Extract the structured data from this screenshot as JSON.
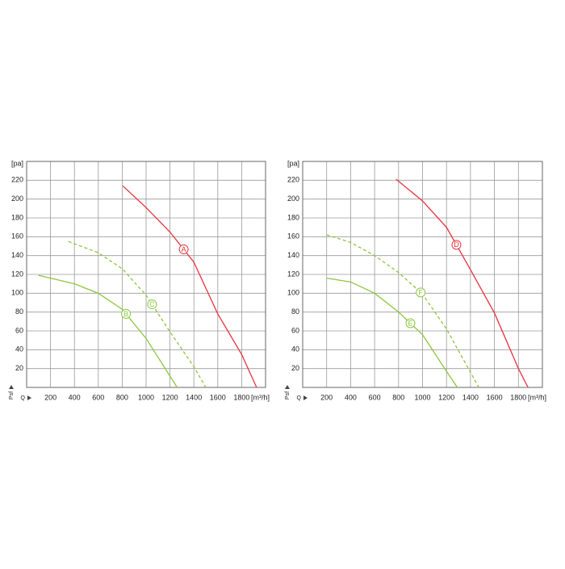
{
  "chart_data": [
    {
      "type": "line",
      "x_label": "[m³/h]",
      "y_label": "[pa]",
      "x_symbol": "Q",
      "y_symbol": "Psf",
      "xlim": [
        0,
        2000
      ],
      "xticks": [
        200,
        400,
        600,
        800,
        1000,
        1200,
        1400,
        1600,
        1800
      ],
      "ylim": [
        0,
        240
      ],
      "yticks": [
        20,
        40,
        60,
        80,
        100,
        120,
        140,
        160,
        180,
        200,
        220
      ],
      "grid": true,
      "series": [
        {
          "name": "A",
          "color": "#e8323c",
          "style": "solid",
          "x": [
            805,
            1000,
            1200,
            1400,
            1600,
            1800,
            1925
          ],
          "values": [
            214,
            191,
            165,
            133,
            78,
            35,
            0
          ]
        },
        {
          "name": "B",
          "color": "#8cc63f",
          "style": "solid",
          "x": [
            100,
            400,
            600,
            800,
            1000,
            1200,
            1260
          ],
          "values": [
            119,
            110,
            100,
            83,
            52,
            12,
            0
          ]
        },
        {
          "name": "C",
          "color": "#8cc63f",
          "style": "dashed",
          "x": [
            350,
            600,
            800,
            1000,
            1200,
            1400,
            1500
          ],
          "values": [
            155,
            143,
            126,
            98,
            59,
            22,
            0
          ]
        }
      ]
    },
    {
      "type": "line",
      "x_label": "[m³/h]",
      "y_label": "[pa]",
      "x_symbol": "Q",
      "y_symbol": "Psf",
      "xlim": [
        0,
        2000
      ],
      "xticks": [
        200,
        400,
        600,
        800,
        1000,
        1200,
        1400,
        1600,
        1800
      ],
      "ylim": [
        0,
        240
      ],
      "yticks": [
        20,
        40,
        60,
        80,
        100,
        120,
        140,
        160,
        180,
        200,
        220
      ],
      "grid": true,
      "series": [
        {
          "name": "D",
          "color": "#e8323c",
          "style": "solid",
          "x": [
            780,
            1000,
            1200,
            1400,
            1600,
            1800,
            1880
          ],
          "values": [
            221,
            198,
            170,
            125,
            79,
            20,
            0
          ]
        },
        {
          "name": "E",
          "color": "#8cc63f",
          "style": "solid",
          "x": [
            200,
            400,
            600,
            800,
            1000,
            1200,
            1290
          ],
          "values": [
            116,
            112,
            100,
            80,
            56,
            17,
            0
          ]
        },
        {
          "name": "F",
          "color": "#8cc63f",
          "style": "dashed",
          "x": [
            200,
            400,
            600,
            800,
            1000,
            1200,
            1300,
            1470
          ],
          "values": [
            162,
            154,
            140,
            122,
            99,
            62,
            39,
            0
          ]
        }
      ]
    }
  ]
}
